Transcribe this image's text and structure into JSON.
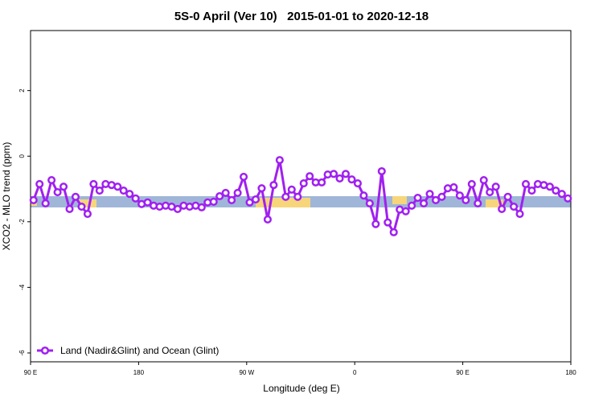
{
  "chart_data": {
    "type": "line",
    "title": "5S-0 April (Ver 10)   2015-01-01 to 2020-12-18",
    "x_label": "Longitude (deg E)",
    "y_label": "XCO2 - MLO trend (ppm)",
    "x": [
      92.5,
      97.5,
      102.5,
      107.5,
      112.5,
      117.5,
      122.5,
      127.5,
      132.5,
      137.5,
      142.5,
      147.5,
      152.5,
      157.5,
      162.5,
      167.5,
      172.5,
      177.5,
      182.5,
      187.5,
      192.5,
      197.5,
      202.5,
      207.5,
      212.5,
      217.5,
      222.5,
      227.5,
      232.5,
      237.5,
      242.5,
      247.5,
      252.5,
      257.5,
      262.5,
      267.5,
      272.5,
      277.5,
      282.5,
      287.5,
      292.5,
      297.5,
      302.5,
      307.5,
      312.5,
      317.5,
      322.5,
      327.5,
      332.5,
      337.5,
      342.5,
      347.5,
      352.5,
      357.5,
      362.5,
      367.5,
      372.5,
      377.5,
      382.5,
      387.5,
      392.5,
      397.5,
      402.5,
      407.5,
      412.5,
      417.5,
      422.5,
      427.5,
      432.5,
      437.5,
      442.5,
      447.5,
      452.5,
      457.5,
      462.5,
      467.5,
      472.5,
      477.5,
      482.5,
      487.5,
      492.5,
      497.5,
      502.5,
      507.5,
      512.5,
      517.5,
      522.5,
      527.5,
      532.5,
      537.5
    ],
    "series": [
      {
        "name": "Land (Nadir&Glint) and Ocean (Glint)",
        "color": "#a020f0",
        "values": [
          -1.34,
          -0.85,
          -1.44,
          -0.73,
          -1.1,
          -0.93,
          -1.61,
          -1.24,
          -1.54,
          -1.76,
          -0.85,
          -1.05,
          -0.85,
          -0.88,
          -0.93,
          -1.05,
          -1.15,
          -1.29,
          -1.46,
          -1.41,
          -1.51,
          -1.54,
          -1.51,
          -1.54,
          -1.61,
          -1.51,
          -1.54,
          -1.51,
          -1.56,
          -1.41,
          -1.39,
          -1.22,
          -1.12,
          -1.34,
          -1.12,
          -0.63,
          -1.41,
          -1.32,
          -0.98,
          -1.93,
          -0.88,
          -0.12,
          -1.24,
          -1.02,
          -1.24,
          -0.83,
          -0.61,
          -0.8,
          -0.8,
          -0.56,
          -0.54,
          -0.68,
          -0.54,
          -0.71,
          -0.83,
          -1.2,
          -1.44,
          -2.07,
          -0.46,
          -2.02,
          -2.32,
          -1.63,
          -1.68,
          -1.51,
          -1.27,
          -1.44,
          -1.15,
          -1.34,
          -1.24,
          -0.98,
          -0.95,
          -1.2,
          -1.34,
          -0.85,
          -1.44,
          -0.73,
          -1.1,
          -0.93,
          -1.61,
          -1.24,
          -1.54,
          -1.76,
          -0.85,
          -1.05,
          -0.85,
          -0.88,
          -0.93,
          -1.05,
          -1.15,
          -1.29
        ]
      }
    ],
    "xlim": [
      90,
      540
    ],
    "xticks": [
      {
        "value": 90,
        "label": "90 E"
      },
      {
        "value": 180,
        "label": "180"
      },
      {
        "value": 270,
        "label": "90 W"
      },
      {
        "value": 360,
        "label": "0"
      },
      {
        "value": 450,
        "label": "90 E"
      },
      {
        "value": 540,
        "label": "180"
      }
    ],
    "ylim": [
      -6.27,
      3.83
    ],
    "yticks": [
      2,
      0,
      -2,
      -4,
      -6
    ],
    "legend": "bottom-left"
  }
}
